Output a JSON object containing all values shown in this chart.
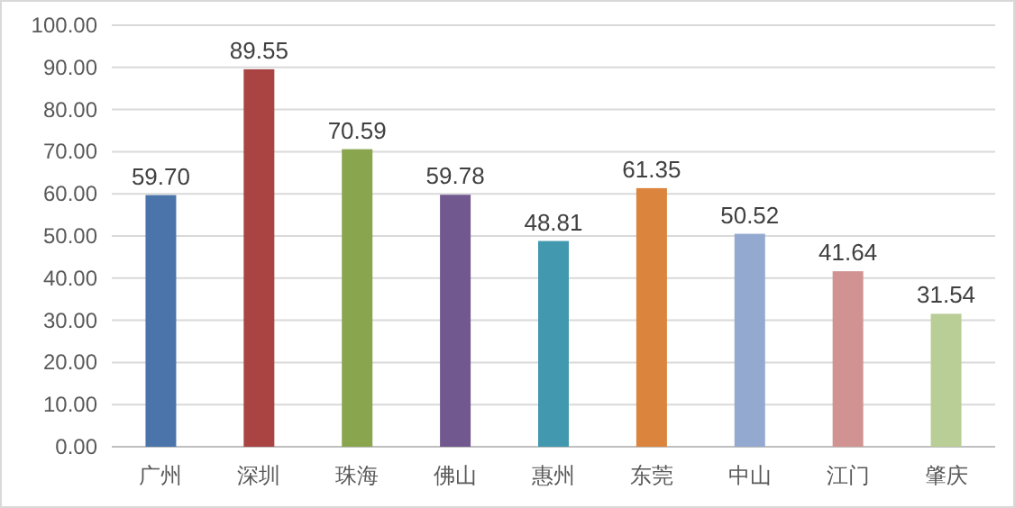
{
  "chart_data": {
    "type": "bar",
    "categories": [
      "广州",
      "深圳",
      "珠海",
      "佛山",
      "惠州",
      "东莞",
      "中山",
      "江门",
      "肇庆"
    ],
    "values": [
      59.7,
      89.55,
      70.59,
      59.78,
      48.81,
      61.35,
      50.52,
      41.64,
      31.54
    ],
    "value_labels": [
      "59.70",
      "89.55",
      "70.59",
      "59.78",
      "48.81",
      "61.35",
      "50.52",
      "41.64",
      "31.54"
    ],
    "colors": [
      "#4a74aa",
      "#a94442",
      "#89a54e",
      "#71588f",
      "#4198af",
      "#db843d",
      "#93a9cf",
      "#d19392",
      "#b9cd96"
    ],
    "ylim": [
      0,
      100
    ],
    "yticks": [
      {
        "value": 0,
        "label": "0.00"
      },
      {
        "value": 10,
        "label": "10.00"
      },
      {
        "value": 20,
        "label": "20.00"
      },
      {
        "value": 30,
        "label": "30.00"
      },
      {
        "value": 40,
        "label": "40.00"
      },
      {
        "value": 50,
        "label": "50.00"
      },
      {
        "value": 60,
        "label": "60.00"
      },
      {
        "value": 70,
        "label": "70.00"
      },
      {
        "value": 80,
        "label": "80.00"
      },
      {
        "value": 90,
        "label": "90.00"
      },
      {
        "value": 100,
        "label": "100.00"
      }
    ],
    "grid": "y"
  }
}
